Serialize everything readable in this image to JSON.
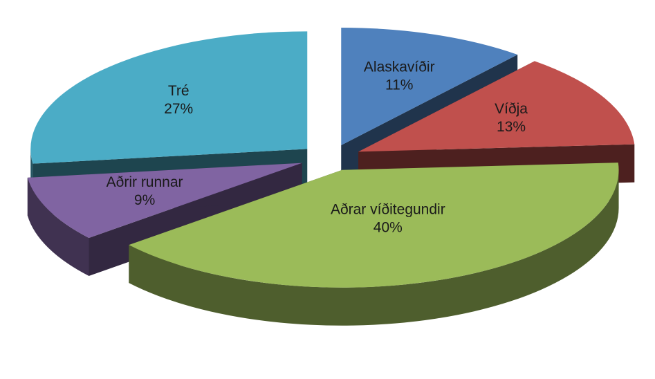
{
  "chart_data": {
    "type": "pie",
    "categories": [
      "Alaskavíðir",
      "Víðja",
      "Aðrar víðitegundir",
      "Aðrir runnar",
      "Tré"
    ],
    "values": [
      11,
      13,
      40,
      9,
      27
    ],
    "value_labels": [
      "11%",
      "13%",
      "40%",
      "9%",
      "27%"
    ],
    "colors": [
      "#4f81bd",
      "#c0504d",
      "#9bbb59",
      "#8064a2",
      "#4bacc6"
    ]
  }
}
